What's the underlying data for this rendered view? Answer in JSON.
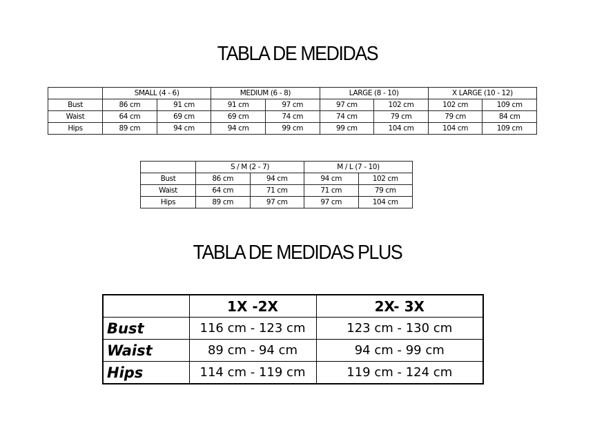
{
  "title_main": "TABLA DE MEDIDAS",
  "title_plus": "TABLA DE MEDIDAS PLUS",
  "table_standard": {
    "sizes": [
      "SMALL (4 - 6)",
      "MEDIUM (6 - 8)",
      "LARGE (8 - 10)",
      "X LARGE (10 - 12)"
    ],
    "rows": [
      {
        "label": "Bust",
        "values": [
          "86 cm",
          "91 cm",
          "91 cm",
          "97 cm",
          "97 cm",
          "102 cm",
          "102 cm",
          "109 cm"
        ]
      },
      {
        "label": "Waist",
        "values": [
          "64 cm",
          "69 cm",
          "69 cm",
          "74 cm",
          "74 cm",
          "79 cm",
          "79 cm",
          "84 cm"
        ]
      },
      {
        "label": "Hips",
        "values": [
          "89 cm",
          "94 cm",
          "94 cm",
          "99 cm",
          "99 cm",
          "104 cm",
          "104 cm",
          "109 cm"
        ]
      }
    ]
  },
  "table_combo": {
    "sizes": [
      "S / M (2 - 7)",
      "M / L (7 - 10)"
    ],
    "rows": [
      {
        "label": "Bust",
        "values": [
          "86 cm",
          "94 cm",
          "94 cm",
          "102 cm"
        ]
      },
      {
        "label": "Waist",
        "values": [
          "64 cm",
          "71 cm",
          "71 cm",
          "79 cm"
        ]
      },
      {
        "label": "Hips",
        "values": [
          "89 cm",
          "97 cm",
          "97 cm",
          "104 cm"
        ]
      }
    ]
  },
  "table_plus": {
    "sizes": [
      "1X -2X",
      "2X- 3X"
    ],
    "rows": [
      {
        "label": "Bust",
        "values": [
          "116 cm - 123 cm",
          "123 cm - 130 cm"
        ]
      },
      {
        "label": "Waist",
        "values": [
          "89  cm - 94 cm",
          "94 cm - 99 cm"
        ]
      },
      {
        "label": "Hips",
        "values": [
          "114 cm - 119 cm",
          "119 cm - 124 cm"
        ]
      }
    ]
  }
}
